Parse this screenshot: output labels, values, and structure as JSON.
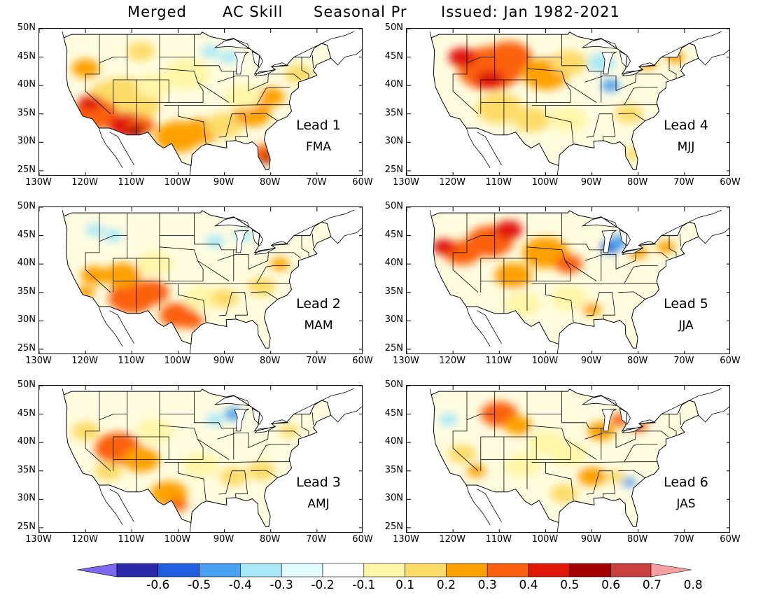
{
  "title": {
    "dataset": "Merged",
    "metric": "AC Skill",
    "variable": "Seasonal Pr",
    "issued": "Issued: Jan 1982-2021"
  },
  "axes": {
    "lat_ticks": [
      "50N",
      "45N",
      "40N",
      "35N",
      "30N",
      "25N"
    ],
    "lon_ticks": [
      "130W",
      "120W",
      "110W",
      "100W",
      "90W",
      "80W",
      "70W",
      "60W"
    ],
    "lat_range": [
      24,
      50
    ],
    "lon_range": [
      -130,
      -60
    ]
  },
  "panels": [
    {
      "lead": "Lead 1",
      "season": "FMA"
    },
    {
      "lead": "Lead 4",
      "season": "MJJ"
    },
    {
      "lead": "Lead 2",
      "season": "MAM"
    },
    {
      "lead": "Lead 5",
      "season": "JJA"
    },
    {
      "lead": "Lead 3",
      "season": "AMJ"
    },
    {
      "lead": "Lead 6",
      "season": "JAS"
    }
  ],
  "colorbar": {
    "labels": [
      "-0.6",
      "-0.5",
      "-0.4",
      "-0.3",
      "-0.2",
      "-0.1",
      "0.1",
      "0.2",
      "0.3",
      "0.4",
      "0.5",
      "0.6",
      "0.7",
      "0.8"
    ],
    "colors": {
      "below": "#7b68ee",
      "c1": "#2a2aa8",
      "c2": "#2060e0",
      "c3": "#4aa0f0",
      "c4": "#a8e8f8",
      "c5": "#e0fcff",
      "c6": "#ffffff",
      "c7": "#fff6a8",
      "c8": "#fddb68",
      "c9": "#fda000",
      "c10": "#fb6010",
      "c11": "#e11808",
      "c12": "#a50000",
      "c13": "#c84040",
      "above": "#f4a0a0"
    }
  }
}
